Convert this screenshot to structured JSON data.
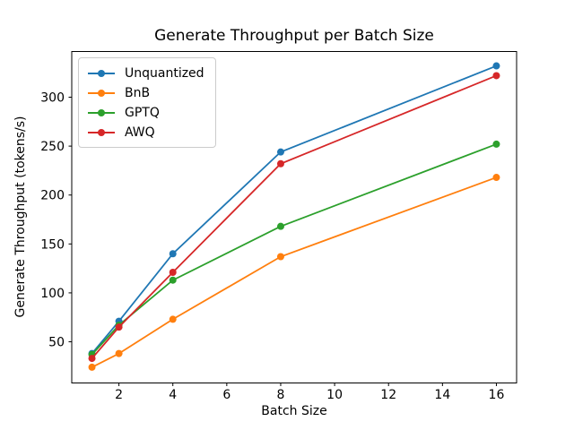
{
  "chart_data": {
    "type": "line",
    "title": "Generate Throughput per Batch Size",
    "xlabel": "Batch Size",
    "ylabel": "Generate Throughput (tokens/s)",
    "x": [
      1,
      2,
      4,
      8,
      16
    ],
    "series": [
      {
        "name": "Unquantized",
        "color": "#1f77b4",
        "values": [
          38,
          71,
          140,
          244,
          332
        ]
      },
      {
        "name": "BnB",
        "color": "#ff7f0e",
        "values": [
          24,
          38,
          73,
          137,
          218
        ]
      },
      {
        "name": "GPTQ",
        "color": "#2ca02c",
        "values": [
          37,
          67,
          113,
          168,
          252
        ]
      },
      {
        "name": "AWQ",
        "color": "#d62728",
        "values": [
          33,
          65,
          121,
          232,
          322
        ]
      }
    ],
    "xlim": [
      0.25,
      16.75
    ],
    "ylim": [
      7.9,
      346.7
    ],
    "xticks": [
      2,
      4,
      6,
      8,
      10,
      12,
      14,
      16
    ],
    "yticks": [
      50,
      100,
      150,
      200,
      250,
      300
    ],
    "grid": false,
    "legend_position": "upper-left",
    "marker": "circle",
    "axis_color": "#000000",
    "background_color": "#ffffff"
  }
}
